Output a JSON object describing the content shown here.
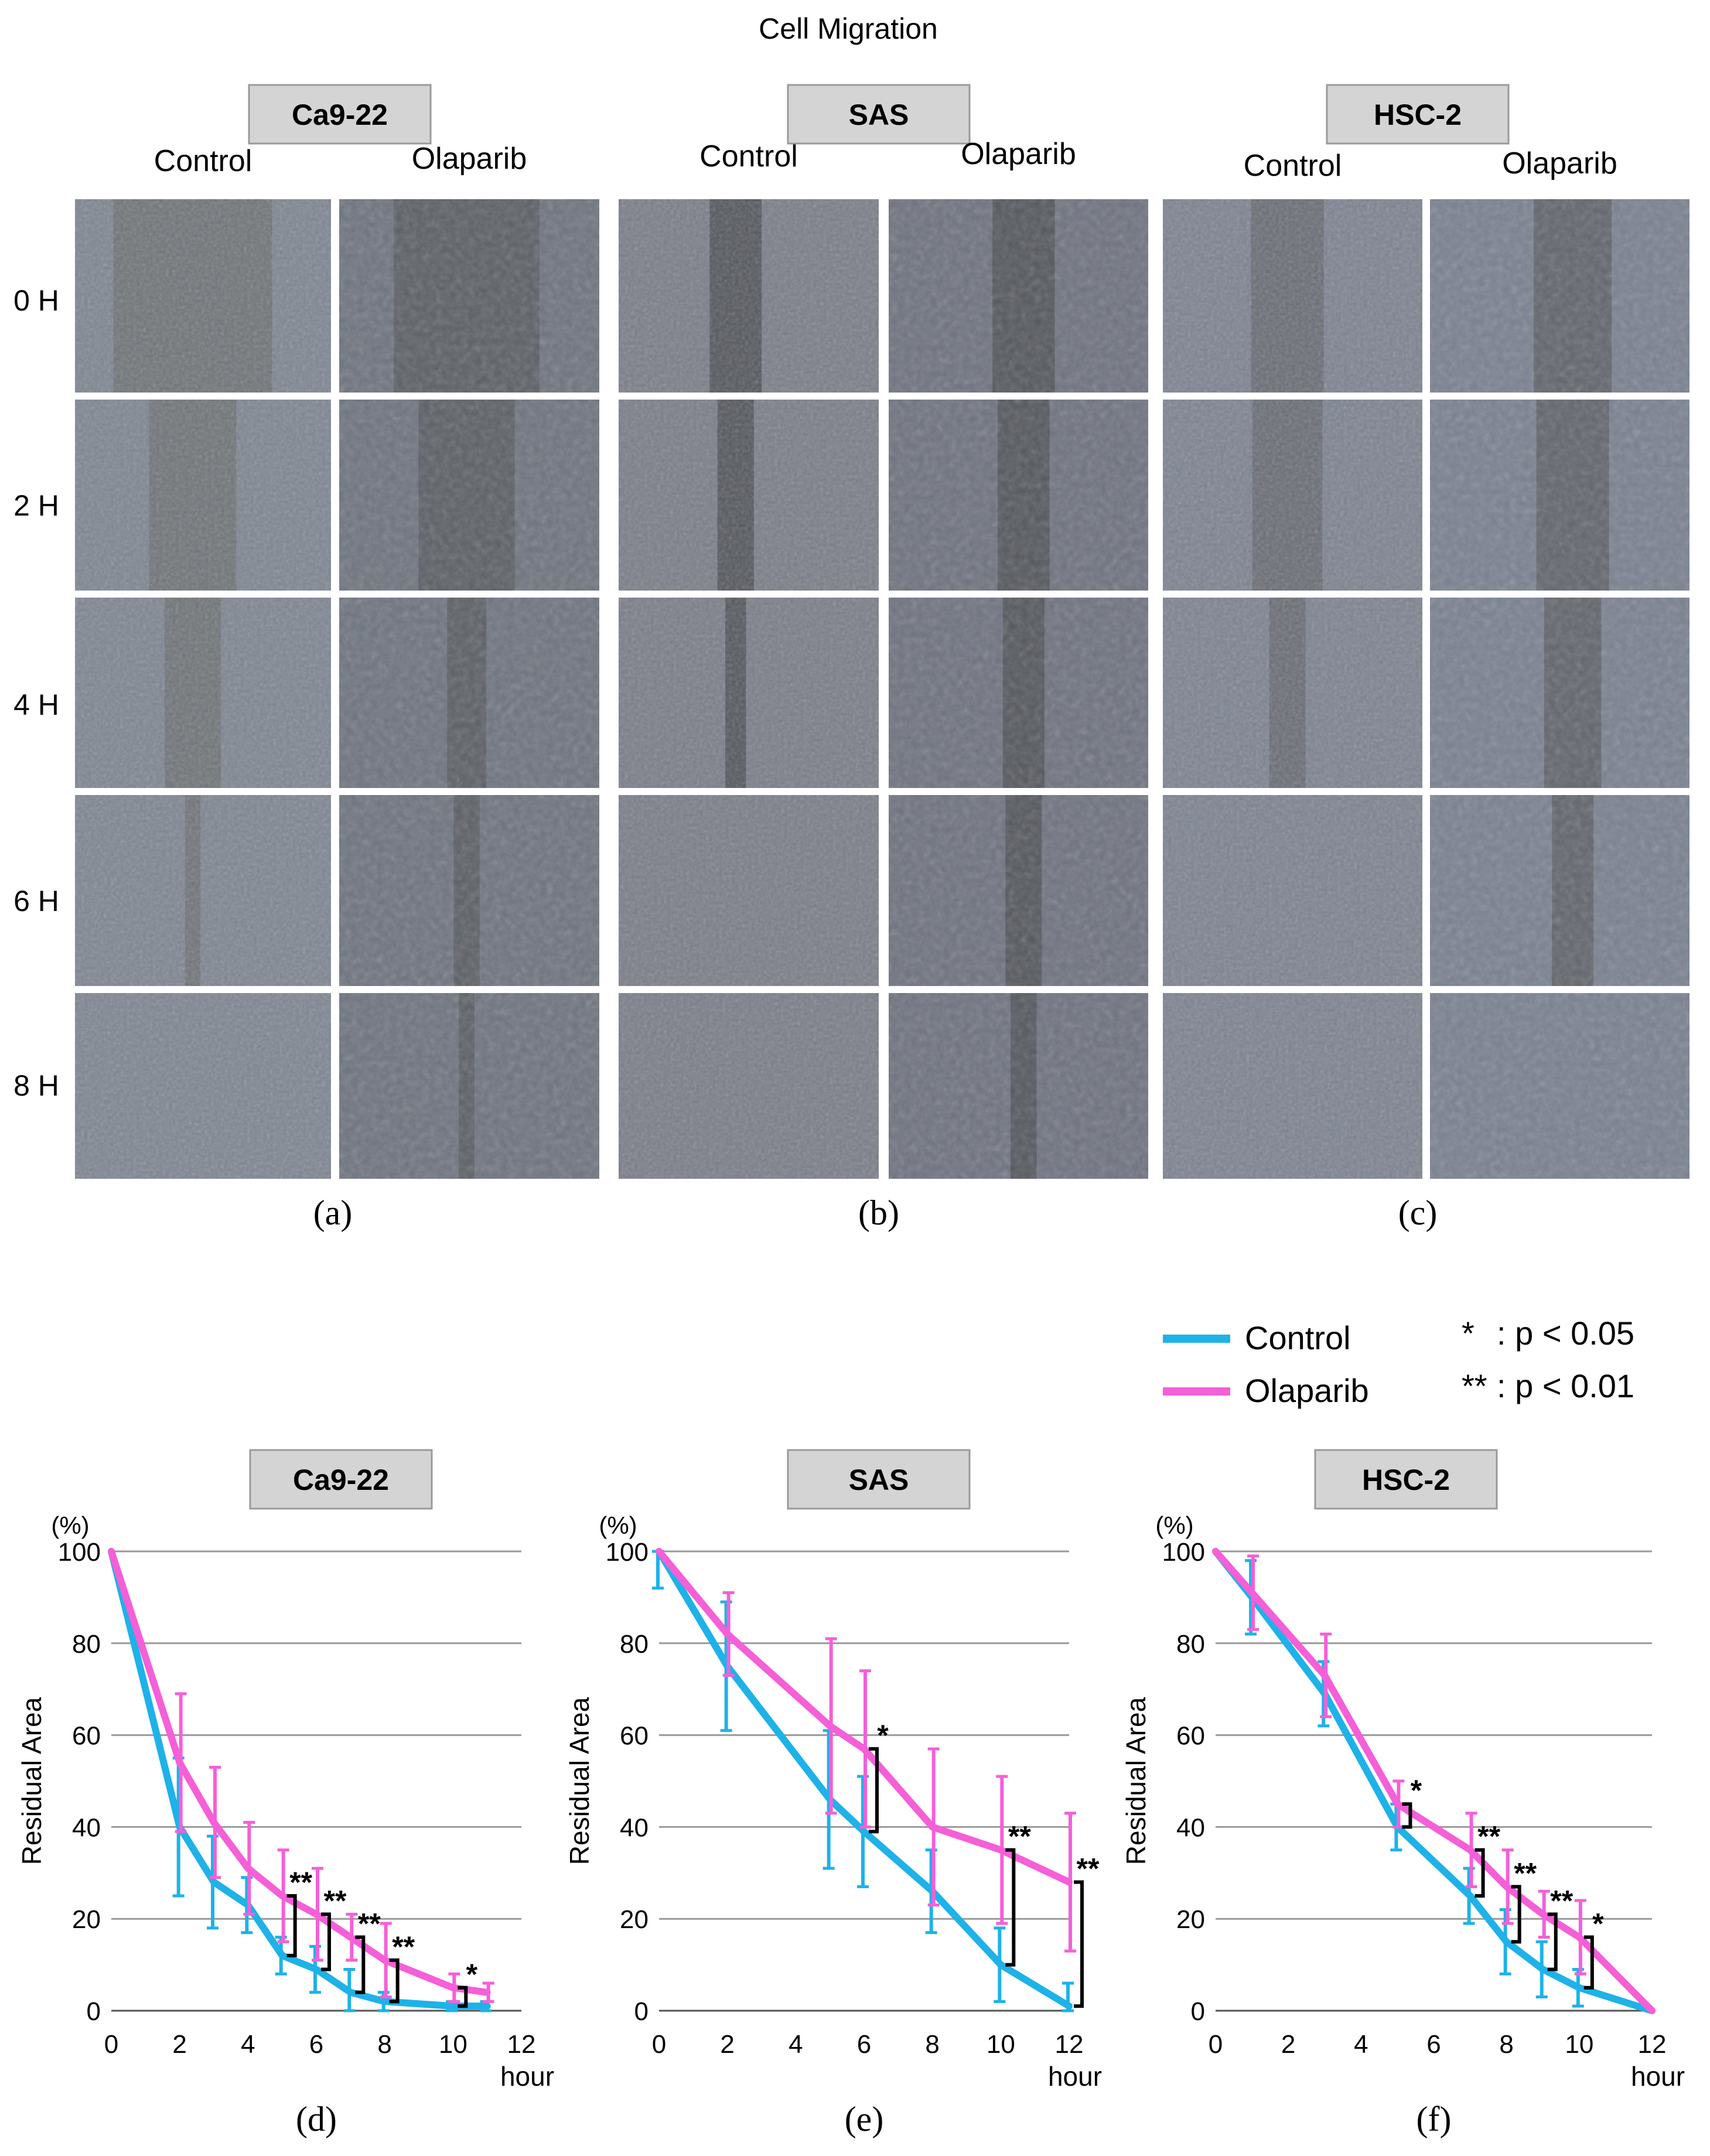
{
  "figure": {
    "title": "Cell Migration",
    "column_labels": [
      "Control",
      "Olaparib"
    ],
    "time_labels": [
      "0 H",
      "2 H",
      "4 H",
      "6 H",
      "8 H"
    ],
    "panels_top": [
      {
        "cell_line": "Ca9-22",
        "letter": "(a)"
      },
      {
        "cell_line": "SAS",
        "letter": "(b)"
      },
      {
        "cell_line": "HSC-2",
        "letter": "(c)"
      }
    ],
    "legend": {
      "control_label": "Control",
      "olaparib_label": "Olaparib",
      "sig1_symbol": "*",
      "sig1_text": ": p < 0.05",
      "sig2_symbol": "**",
      "sig2_text": ": p < 0.01"
    },
    "colors": {
      "control": "#1eb2e8",
      "olaparib": "#f55fd8",
      "grid": "#9a9a9a",
      "tab": "#d4d4d4"
    }
  },
  "chart_data": [
    {
      "type": "line",
      "letter": "(d)",
      "title": "Ca9-22",
      "ylabel": "Residual Area",
      "yunit": "(%)",
      "xlabel": "hour",
      "xlim": [
        0,
        12
      ],
      "ylim": [
        0,
        100
      ],
      "xticks": [
        0,
        2,
        4,
        6,
        8,
        10,
        12
      ],
      "yticks": [
        0,
        20,
        40,
        60,
        80,
        100
      ],
      "series": [
        {
          "name": "Control",
          "x": [
            0,
            2,
            3,
            4,
            5,
            6,
            7,
            8,
            10,
            11
          ],
          "y": [
            100,
            40,
            28,
            23,
            12,
            9,
            4,
            2,
            1,
            1
          ],
          "err": [
            0,
            15,
            10,
            6,
            4,
            5,
            5,
            2,
            1,
            1
          ]
        },
        {
          "name": "Olaparib",
          "x": [
            0,
            2,
            3,
            4,
            5,
            6,
            7,
            8,
            10,
            11
          ],
          "y": [
            100,
            54,
            41,
            31,
            25,
            21,
            16,
            11,
            5,
            4
          ],
          "err": [
            0,
            15,
            12,
            10,
            10,
            10,
            5,
            8,
            3,
            2
          ]
        }
      ],
      "significance": [
        {
          "x": 5,
          "label": "**"
        },
        {
          "x": 6,
          "label": "**"
        },
        {
          "x": 7,
          "label": "**"
        },
        {
          "x": 8,
          "label": "**"
        },
        {
          "x": 10,
          "label": "*"
        }
      ]
    },
    {
      "type": "line",
      "letter": "(e)",
      "title": "SAS",
      "ylabel": "Residual Area",
      "yunit": "(%)",
      "xlabel": "hour",
      "xlim": [
        0,
        12
      ],
      "ylim": [
        0,
        100
      ],
      "xticks": [
        0,
        2,
        4,
        6,
        8,
        10,
        12
      ],
      "yticks": [
        0,
        20,
        40,
        60,
        80,
        100
      ],
      "series": [
        {
          "name": "Control",
          "x": [
            0,
            2,
            5,
            6,
            8,
            10,
            12
          ],
          "y": [
            100,
            75,
            46,
            39,
            26,
            10,
            1
          ],
          "err": [
            8,
            14,
            15,
            12,
            9,
            8,
            5
          ]
        },
        {
          "name": "Olaparib",
          "x": [
            0,
            2,
            5,
            6,
            8,
            10,
            12
          ],
          "y": [
            100,
            82,
            62,
            57,
            40,
            35,
            28
          ],
          "err": [
            0,
            9,
            19,
            17,
            17,
            16,
            15
          ]
        }
      ],
      "significance": [
        {
          "x": 6,
          "label": "*"
        },
        {
          "x": 10,
          "label": "**"
        },
        {
          "x": 12,
          "label": "**"
        }
      ]
    },
    {
      "type": "line",
      "letter": "(f)",
      "title": "HSC-2",
      "ylabel": "Residual Area",
      "yunit": "(%)",
      "xlabel": "hour",
      "xlim": [
        0,
        12
      ],
      "ylim": [
        0,
        100
      ],
      "xticks": [
        0,
        2,
        4,
        6,
        8,
        10,
        12
      ],
      "yticks": [
        0,
        20,
        40,
        60,
        80,
        100
      ],
      "series": [
        {
          "name": "Control",
          "x": [
            0,
            1,
            3,
            5,
            7,
            8,
            9,
            10,
            12
          ],
          "y": [
            100,
            90,
            69,
            40,
            25,
            15,
            9,
            5,
            0
          ],
          "err": [
            0,
            8,
            7,
            5,
            6,
            7,
            6,
            4,
            0
          ]
        },
        {
          "name": "Olaparib",
          "x": [
            0,
            1,
            3,
            5,
            7,
            8,
            9,
            10,
            12
          ],
          "y": [
            100,
            91,
            73,
            45,
            35,
            27,
            21,
            16,
            0
          ],
          "err": [
            0,
            8,
            9,
            5,
            8,
            8,
            5,
            8,
            0
          ]
        }
      ],
      "significance": [
        {
          "x": 5,
          "label": "*"
        },
        {
          "x": 7,
          "label": "**"
        },
        {
          "x": 8,
          "label": "**"
        },
        {
          "x": 9,
          "label": "**"
        },
        {
          "x": 10,
          "label": "*"
        }
      ]
    }
  ]
}
